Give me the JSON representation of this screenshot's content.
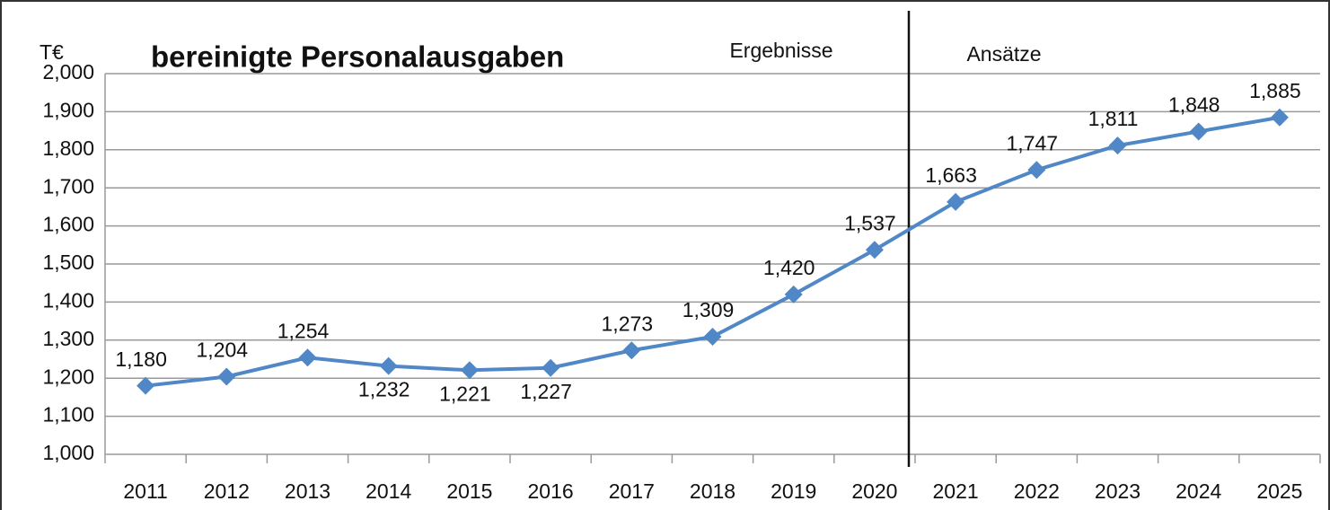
{
  "chart_data": {
    "type": "line",
    "title": "bereinigte Personalausgaben",
    "y_axis_label": "T€",
    "annotations": [
      "Ergebnisse",
      "Ansätze"
    ],
    "categories": [
      "2011",
      "2012",
      "2013",
      "2014",
      "2015",
      "2016",
      "2017",
      "2018",
      "2019",
      "2020",
      "2021",
      "2022",
      "2023",
      "2024",
      "2025"
    ],
    "series": [
      {
        "name": "bereinigte Personalausgaben",
        "color": "#4f87c7",
        "values": [
          1180,
          1204,
          1254,
          1232,
          1221,
          1227,
          1273,
          1309,
          1420,
          1537,
          1663,
          1747,
          1811,
          1848,
          1885
        ],
        "value_labels": [
          "1,180",
          "1,204",
          "1,254",
          "1,232",
          "1,221",
          "1,227",
          "1,273",
          "1,309",
          "1,420",
          "1,537",
          "1,663",
          "1,747",
          "1,811",
          "1,848",
          "1,885"
        ]
      }
    ],
    "ylim": [
      1000,
      2000
    ],
    "yticks": [
      {
        "value": 1000,
        "label": "1,000"
      },
      {
        "value": 1100,
        "label": "1,100"
      },
      {
        "value": 1200,
        "label": "1,200"
      },
      {
        "value": 1300,
        "label": "1,300"
      },
      {
        "value": 1400,
        "label": "1,400"
      },
      {
        "value": 1500,
        "label": "1,500"
      },
      {
        "value": 1600,
        "label": "1,600"
      },
      {
        "value": 1700,
        "label": "1,700"
      },
      {
        "value": 1800,
        "label": "1,800"
      },
      {
        "value": 1900,
        "label": "1,900"
      },
      {
        "value": 2000,
        "label": "2,000"
      }
    ],
    "grid": true
  }
}
